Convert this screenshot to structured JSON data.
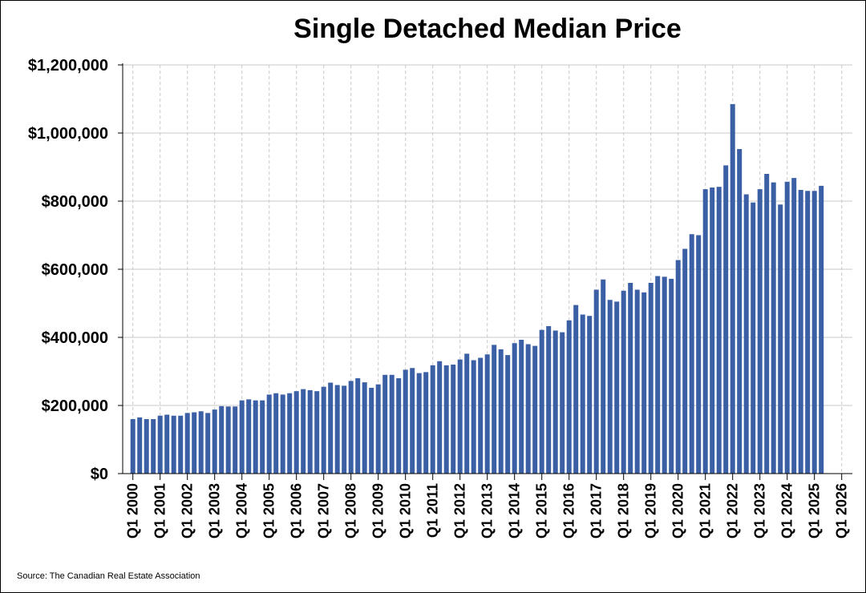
{
  "chart_data": {
    "type": "bar",
    "title": "Single Detached Median Price",
    "xlabel": "",
    "ylabel": "",
    "ylim": [
      0,
      1200000
    ],
    "y_ticks": [
      0,
      200000,
      400000,
      600000,
      800000,
      1000000,
      1200000
    ],
    "y_tick_labels": [
      "$0",
      "$200,000",
      "$400,000",
      "$600,000",
      "$800,000",
      "$1,000,000",
      "$1,200,000"
    ],
    "x_tick_labels": [
      "Q1 2000",
      "Q1 2001",
      "Q1 2002",
      "Q1 2003",
      "Q1 2004",
      "Q1 2005",
      "Q1 2006",
      "Q1 2007",
      "Q1 2008",
      "Q1 2009",
      "Q1 2010",
      "Q1 2011",
      "Q1 2012",
      "Q1 2013",
      "Q1 2014",
      "Q1 2015",
      "Q1 2016",
      "Q1 2017",
      "Q1 2018",
      "Q1 2019",
      "Q1 2020",
      "Q1 2021",
      "Q1 2022",
      "Q1 2023",
      "Q1 2024",
      "Q1 2025",
      "Q1 2026"
    ],
    "bar_color": "#3a5fa5",
    "grid": true,
    "series": [
      {
        "name": "Single Detached Median Price",
        "values": [
          160000,
          165000,
          160000,
          160000,
          170000,
          173000,
          170000,
          170000,
          178000,
          180000,
          183000,
          178000,
          188000,
          198000,
          197000,
          197000,
          215000,
          218000,
          215000,
          215000,
          232000,
          236000,
          232000,
          236000,
          242000,
          248000,
          245000,
          242000,
          255000,
          267000,
          260000,
          258000,
          272000,
          280000,
          268000,
          252000,
          262000,
          290000,
          290000,
          280000,
          305000,
          310000,
          295000,
          298000,
          318000,
          330000,
          318000,
          320000,
          335000,
          352000,
          333000,
          340000,
          350000,
          378000,
          365000,
          348000,
          383000,
          393000,
          380000,
          375000,
          422000,
          433000,
          420000,
          415000,
          450000,
          495000,
          467000,
          463000,
          540000,
          570000,
          510000,
          505000,
          537000,
          560000,
          540000,
          532000,
          560000,
          580000,
          578000,
          572000,
          627000,
          660000,
          703000,
          700000,
          835000,
          840000,
          842000,
          905000,
          1085000,
          953000,
          820000,
          796000,
          835000,
          880000,
          855000,
          790000,
          857000,
          868000,
          833000,
          830000,
          830000,
          845000
        ]
      }
    ]
  },
  "source": "Source: The Canadian Real Estate Association"
}
